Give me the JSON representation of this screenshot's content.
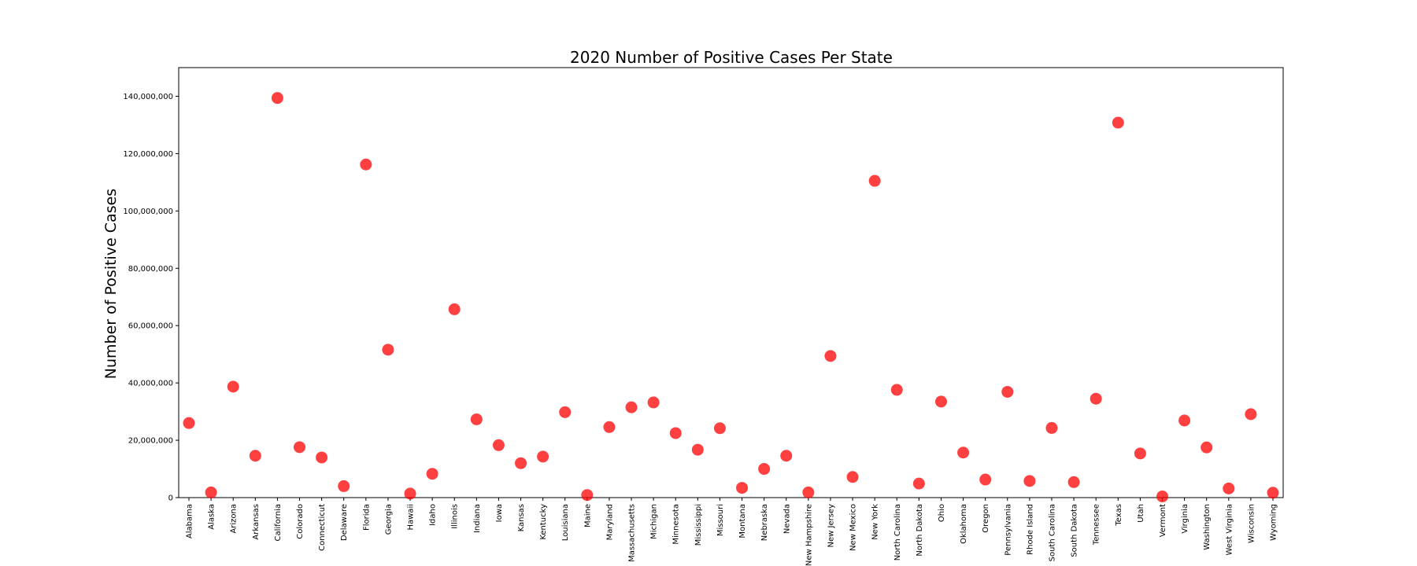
{
  "chart_data": {
    "type": "scatter",
    "title": "2020 Number of Positive Cases Per State",
    "xlabel": "",
    "ylabel": "Number of Positive Cases",
    "ylim": [
      0,
      150000000
    ],
    "yticks": [
      0,
      20000000,
      40000000,
      60000000,
      80000000,
      100000000,
      120000000,
      140000000
    ],
    "ytick_labels": [
      "0",
      "20,000,000",
      "40,000,000",
      "60,000,000",
      "80,000,000",
      "100,000,000",
      "120,000,000",
      "140,000,000"
    ],
    "grid": false,
    "legend": "none",
    "marker_color": "#ff0000",
    "categories": [
      "Alabama",
      "Alaska",
      "Arizona",
      "Arkansas",
      "California",
      "Colorado",
      "Connecticut",
      "Delaware",
      "Florida",
      "Georgia",
      "Hawaii",
      "Idaho",
      "Illinois",
      "Indiana",
      "Iowa",
      "Kansas",
      "Kentucky",
      "Louisiana",
      "Maine",
      "Maryland",
      "Massachusetts",
      "Michigan",
      "Minnesota",
      "Mississippi",
      "Missouri",
      "Montana",
      "Nebraska",
      "Nevada",
      "New Hampshire",
      "New Jersey",
      "New Mexico",
      "New York",
      "North Carolina",
      "North Dakota",
      "Ohio",
      "Oklahoma",
      "Oregon",
      "Pennsylvania",
      "Rhode Island",
      "South Carolina",
      "South Dakota",
      "Tennessee",
      "Texas",
      "Utah",
      "Vermont",
      "Virginia",
      "Washington",
      "West Virginia",
      "Wisconsin",
      "Wyoming"
    ],
    "values": [
      26000000,
      1800000,
      38700000,
      14600000,
      139400000,
      17600000,
      14000000,
      4000000,
      116200000,
      51600000,
      1400000,
      8300000,
      65700000,
      27300000,
      18300000,
      12000000,
      14300000,
      29800000,
      900000,
      24600000,
      31500000,
      33200000,
      22500000,
      16700000,
      24200000,
      3400000,
      10000000,
      14600000,
      1800000,
      49400000,
      7200000,
      110500000,
      37600000,
      4900000,
      33500000,
      15700000,
      6300000,
      36900000,
      5800000,
      24300000,
      5400000,
      34500000,
      130800000,
      15400000,
      400000,
      26900000,
      17500000,
      3200000,
      29100000,
      1700000
    ]
  }
}
